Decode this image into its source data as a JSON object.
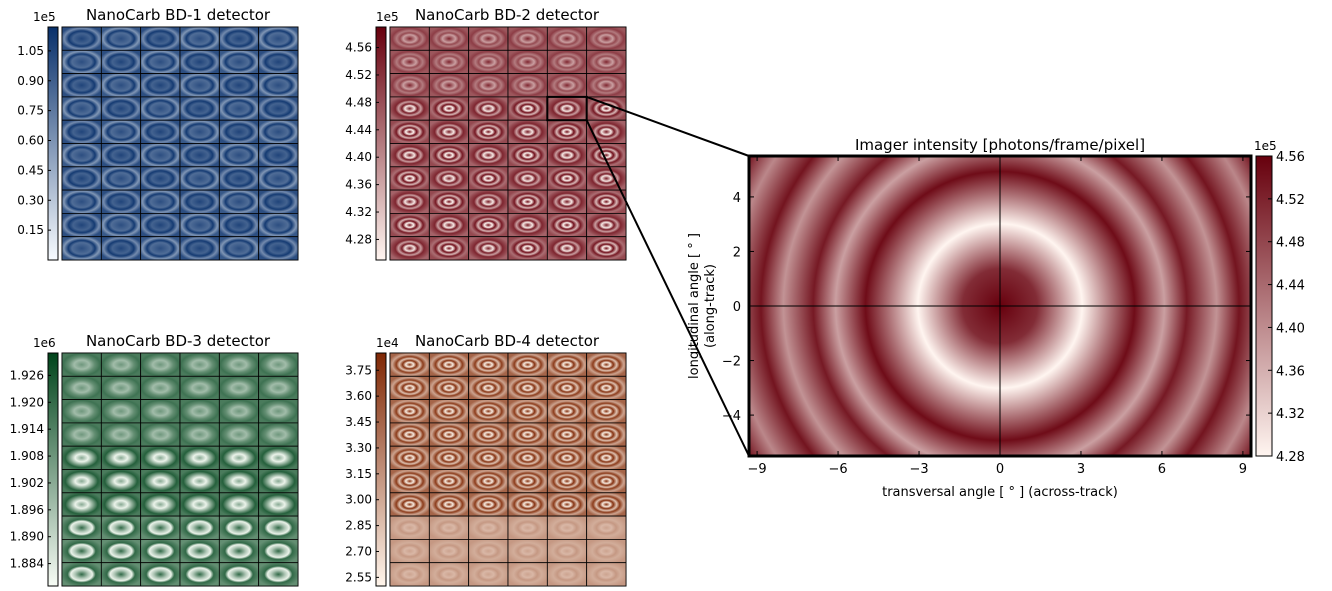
{
  "chart_data": [
    {
      "type": "heatmap",
      "title": "NanoCarb BD-1 detector",
      "exponent": "1e5",
      "grid": {
        "rows": 10,
        "cols": 6
      },
      "colormap": "Blues",
      "colors": [
        "#f7fbff",
        "#08306b"
      ],
      "clim": [
        0.0,
        1.17
      ],
      "colorbar_ticks": [
        "1.05",
        "0.90",
        "0.75",
        "0.60",
        "0.45",
        "0.30",
        "0.15"
      ],
      "colorbar_values": [
        1.05,
        0.9,
        0.75,
        0.6,
        0.45,
        0.3,
        0.15
      ]
    },
    {
      "type": "heatmap",
      "title": "NanoCarb BD-2 detector",
      "exponent": "1e5",
      "grid": {
        "rows": 10,
        "cols": 6
      },
      "colormap": "Reds",
      "colors": [
        "#fff5f0",
        "#67000d"
      ],
      "clim": [
        4.25,
        4.59
      ],
      "colorbar_ticks": [
        "4.56",
        "4.52",
        "4.48",
        "4.44",
        "4.40",
        "4.36",
        "4.32",
        "4.28"
      ],
      "colorbar_values": [
        4.56,
        4.52,
        4.48,
        4.44,
        4.4,
        4.36,
        4.32,
        4.28
      ]
    },
    {
      "type": "heatmap",
      "title": "NanoCarb BD-3 detector",
      "exponent": "1e6",
      "grid": {
        "rows": 10,
        "cols": 6
      },
      "colormap": "Greens",
      "colors": [
        "#f7fcf5",
        "#00441b"
      ],
      "clim": [
        1.879,
        1.931
      ],
      "colorbar_ticks": [
        "1.926",
        "1.920",
        "1.914",
        "1.908",
        "1.902",
        "1.896",
        "1.890",
        "1.884"
      ],
      "colorbar_values": [
        1.926,
        1.92,
        1.914,
        1.908,
        1.902,
        1.896,
        1.89,
        1.884
      ]
    },
    {
      "type": "heatmap",
      "title": "NanoCarb BD-4 detector",
      "exponent": "1e4",
      "grid": {
        "rows": 10,
        "cols": 6
      },
      "colormap": "Oranges",
      "colors": [
        "#fff5eb",
        "#7f2704"
      ],
      "clim": [
        2.5,
        3.85
      ],
      "colorbar_ticks": [
        "3.75",
        "3.60",
        "3.45",
        "3.30",
        "3.15",
        "3.00",
        "2.85",
        "2.70",
        "2.55"
      ],
      "colorbar_values": [
        3.75,
        3.6,
        3.45,
        3.3,
        3.15,
        3.0,
        2.85,
        2.7,
        2.55
      ]
    },
    {
      "type": "heatmap",
      "title": "Imager intensity [photons/frame/pixel]",
      "exponent": "1e5",
      "colormap": "Reds",
      "colors": [
        "#fff5f0",
        "#67000d"
      ],
      "xlabel": "transversal angle [$^\\circ$] (across-track)",
      "xlabel_display": "transversal angle [ ° ] (across-track)",
      "ylabel_line1": "longitudinal angle [ ° ]",
      "ylabel_line2": "(along-track)",
      "xlim": [
        -9.3,
        9.3
      ],
      "ylim": [
        -5.5,
        5.5
      ],
      "xticks": [
        -9,
        -6,
        -3,
        0,
        3,
        6,
        9
      ],
      "xtick_labels": [
        "−9",
        "−6",
        "−3",
        "0",
        "3",
        "6",
        "9"
      ],
      "yticks": [
        4,
        2,
        0,
        -2,
        -4
      ],
      "ytick_labels": [
        "4",
        "2",
        "0",
        "−2",
        "−4"
      ],
      "clim": [
        4.28,
        4.56
      ],
      "colorbar_ticks": [
        "4.56",
        "4.52",
        "4.48",
        "4.44",
        "4.40",
        "4.36",
        "4.32",
        "4.28"
      ],
      "colorbar_values": [
        4.56,
        4.52,
        4.48,
        4.44,
        4.4,
        4.36,
        4.32,
        4.28
      ],
      "crosshair": {
        "x": 0,
        "y": 0
      },
      "zoom_source": {
        "panel": "NanoCarb BD-2 detector",
        "row": 3,
        "col": 4
      }
    }
  ]
}
